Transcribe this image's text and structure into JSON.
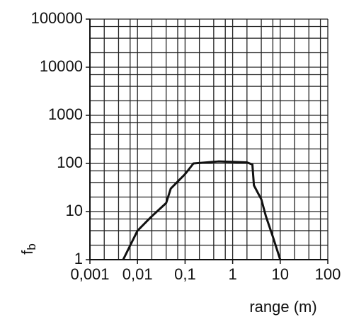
{
  "chart_data": {
    "type": "line",
    "log_x": true,
    "log_y": true,
    "grid": true,
    "xlabel": "range (m)",
    "ylabel": {
      "text": "f",
      "subscript": "b"
    },
    "xlim": [
      0.001,
      100
    ],
    "ylim": [
      1,
      100000
    ],
    "xticks": [
      {
        "value": 0.001,
        "label": "0,001"
      },
      {
        "value": 0.01,
        "label": "0,01"
      },
      {
        "value": 0.1,
        "label": "0,1"
      },
      1,
      10,
      100
    ],
    "yticks": [
      1,
      10,
      100,
      1000,
      10000,
      100000
    ],
    "xminor": [
      0.002,
      0.004,
      0.007,
      0.02,
      0.04,
      0.07,
      0.2,
      0.4,
      0.7,
      2,
      4,
      7,
      20,
      40,
      70
    ],
    "yminor": [
      2,
      4,
      7,
      20,
      40,
      70,
      200,
      400,
      700,
      2000,
      4000,
      7000,
      20000,
      40000,
      70000
    ],
    "series": [
      {
        "color": "#111111",
        "x": [
          0.005,
          0.01,
          0.02,
          0.04,
          0.05,
          0.1,
          0.15,
          0.5,
          2,
          2.6,
          2.8,
          4,
          5,
          7,
          10
        ],
        "values": [
          1,
          4,
          8,
          15,
          30,
          60,
          100,
          110,
          105,
          95,
          35,
          18,
          8,
          3,
          1
        ]
      }
    ]
  }
}
